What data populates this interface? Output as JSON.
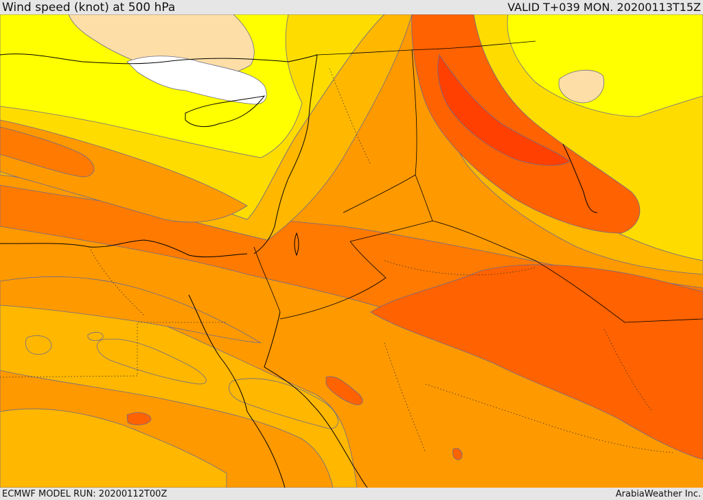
{
  "header": {
    "title": "Wind speed (knot) at 500 hPa",
    "valid": "VALID T+039 MON. 20200113T15Z"
  },
  "footer": {
    "model_run": "ECMWF MODEL RUN: 20200112T00Z",
    "credit": "ArabiaWeather Inc."
  },
  "palette": {
    "white": "#ffffff",
    "peach": "#fddea6",
    "yellow": "#ffff00",
    "gold": "#ffdc00",
    "light_orange": "#ffb700",
    "orange": "#ff9900",
    "dark_orange": "#ff7a00",
    "red_orange": "#ff6200",
    "red": "#ff4000",
    "contour": "#6b6b8c",
    "coast": "#000000"
  }
}
